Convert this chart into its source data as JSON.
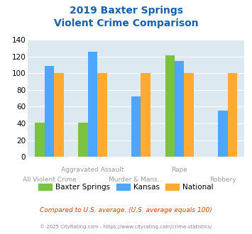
{
  "title_line1": "2019 Baxter Springs",
  "title_line2": "Violent Crime Comparison",
  "categories": [
    "All Violent Crime",
    "Aggravated Assault",
    "Murder & Mans...",
    "Rape",
    "Robbery"
  ],
  "series": {
    "Baxter Springs": [
      41,
      41,
      null,
      121,
      null
    ],
    "Kansas": [
      109,
      126,
      72,
      115,
      55
    ],
    "National": [
      100,
      100,
      100,
      100,
      100
    ]
  },
  "colors": {
    "Baxter Springs": "#7bc142",
    "Kansas": "#4da6ff",
    "National": "#ffaa33"
  },
  "ylim": [
    0,
    140
  ],
  "yticks": [
    0,
    20,
    40,
    60,
    80,
    100,
    120,
    140
  ],
  "title_color": "#1a5faa",
  "plot_bg": "#dce9f0",
  "footnote1": "Compared to U.S. average. (U.S. average equals 100)",
  "footnote2": "© 2025 CityRating.com - https://www.cityrating.com/crime-statistics/",
  "footnote1_color": "#cc4400",
  "footnote2_color": "#888888",
  "xlabel_color": "#9b9b9b",
  "bar_width": 0.22,
  "upper_labels": [
    "",
    "Aggravated Assault",
    "",
    "Rape",
    ""
  ],
  "lower_labels": [
    "All Violent Crime",
    "",
    "Murder & Mans...",
    "",
    "Robbery"
  ]
}
